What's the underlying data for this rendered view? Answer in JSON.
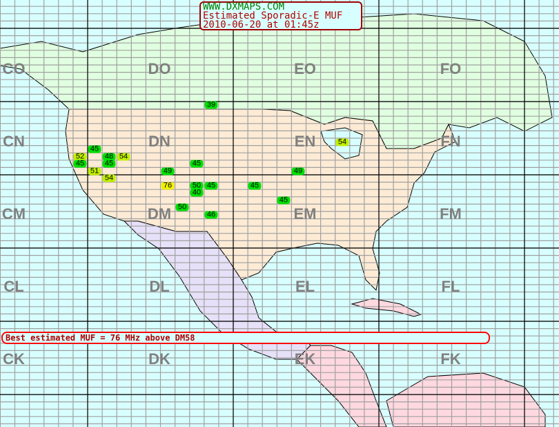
{
  "header": {
    "site": "WWW.DXMAPS.COM",
    "title": "Estimated Sporadic-E MUF",
    "timestamp": "2010-06-20 at 01:45z"
  },
  "summary": "Best estimated MUF = 76 MHz above DM58",
  "colors": {
    "ocean": "#d8ffff",
    "usa": "#fdebd5",
    "canada": "#e0ffe0",
    "mexico": "#e6e0f8",
    "central_america": "#ffd8e0",
    "muf_low": "#00e000",
    "muf_mid": "#c0f000",
    "muf_high": "#f0f000"
  },
  "grid_fields": [
    "CO",
    "DO",
    "EO",
    "FO",
    "CN",
    "DN",
    "EN",
    "FN",
    "CM",
    "DM",
    "EM",
    "FM",
    "CL",
    "DL",
    "EL",
    "FL",
    "CK",
    "DK",
    "EK",
    "FK"
  ],
  "muf_reports": [
    {
      "value": "39",
      "level": "low"
    },
    {
      "value": "45",
      "level": "low"
    },
    {
      "value": "52",
      "level": "mid"
    },
    {
      "value": "48",
      "level": "low"
    },
    {
      "value": "54",
      "level": "mid"
    },
    {
      "value": "45",
      "level": "low"
    },
    {
      "value": "45",
      "level": "low"
    },
    {
      "value": "51",
      "level": "mid"
    },
    {
      "value": "54",
      "level": "mid"
    },
    {
      "value": "49",
      "level": "low"
    },
    {
      "value": "45",
      "level": "low"
    },
    {
      "value": "49",
      "level": "low"
    },
    {
      "value": "54",
      "level": "mid"
    },
    {
      "value": "76",
      "level": "high"
    },
    {
      "value": "50",
      "level": "low"
    },
    {
      "value": "45",
      "level": "low"
    },
    {
      "value": "40",
      "level": "low"
    },
    {
      "value": "45",
      "level": "low"
    },
    {
      "value": "45",
      "level": "low"
    },
    {
      "value": "50",
      "level": "low"
    },
    {
      "value": "46",
      "level": "low"
    }
  ]
}
